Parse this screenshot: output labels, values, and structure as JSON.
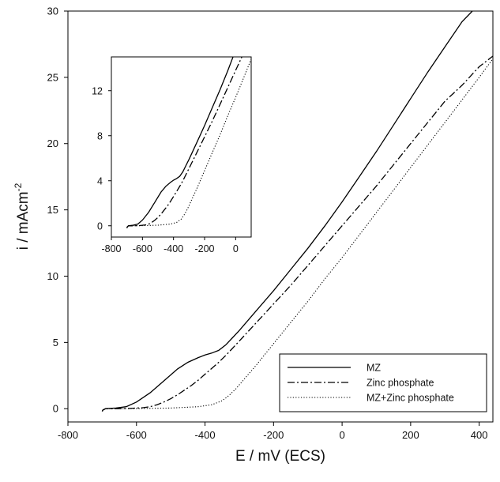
{
  "chart_data": {
    "type": "line",
    "xlabel": "E / mV (ECS)",
    "ylabel": "i / mAcm",
    "ylabel_superscript": "-2",
    "xlim": [
      -800,
      440
    ],
    "ylim": [
      -1,
      30
    ],
    "xticks": [
      -800,
      -600,
      -400,
      -200,
      0,
      200,
      400
    ],
    "yticks": [
      0,
      5,
      10,
      15,
      20,
      25,
      30
    ],
    "grid": false,
    "legend_position": "bottom-right",
    "series": [
      {
        "name": "MZ",
        "style": "solid",
        "x": [
          -700,
          -698,
          -690,
          -660,
          -630,
          -600,
          -560,
          -520,
          -480,
          -450,
          -420,
          -400,
          -380,
          -360,
          -340,
          -320,
          -300,
          -250,
          -200,
          -150,
          -100,
          -50,
          0,
          50,
          100,
          150,
          200,
          250,
          300,
          350,
          380
        ],
        "y": [
          -0.2,
          -0.1,
          0.0,
          0.05,
          0.15,
          0.5,
          1.2,
          2.1,
          3.0,
          3.5,
          3.85,
          4.05,
          4.2,
          4.4,
          4.8,
          5.35,
          5.9,
          7.4,
          8.9,
          10.5,
          12.1,
          13.8,
          15.6,
          17.5,
          19.4,
          21.4,
          23.4,
          25.4,
          27.3,
          29.2,
          30.0
        ]
      },
      {
        "name": "Zinc phosphate",
        "style": "dashdot",
        "x": [
          -700,
          -698,
          -690,
          -660,
          -620,
          -580,
          -560,
          -540,
          -520,
          -500,
          -480,
          -460,
          -440,
          -420,
          -400,
          -380,
          -360,
          -340,
          -300,
          -250,
          -200,
          -150,
          -100,
          -50,
          0,
          50,
          100,
          150,
          200,
          250,
          300,
          350,
          400,
          440
        ],
        "y": [
          -0.2,
          -0.1,
          0.0,
          0.0,
          0.02,
          0.08,
          0.15,
          0.3,
          0.5,
          0.75,
          1.05,
          1.4,
          1.75,
          2.15,
          2.6,
          3.05,
          3.5,
          4.0,
          5.1,
          6.5,
          7.9,
          9.3,
          10.8,
          12.3,
          13.8,
          15.3,
          16.8,
          18.4,
          20.0,
          21.6,
          23.2,
          24.4,
          25.8,
          26.6
        ]
      },
      {
        "name": "MZ+Zinc phosphate",
        "style": "dotted",
        "x": [
          -700,
          -698,
          -690,
          -600,
          -500,
          -420,
          -380,
          -350,
          -330,
          -310,
          -290,
          -270,
          -250,
          -200,
          -150,
          -100,
          -50,
          0,
          50,
          100,
          150,
          200,
          250,
          300,
          350,
          400,
          440
        ],
        "y": [
          -0.2,
          -0.1,
          0.0,
          0.01,
          0.05,
          0.15,
          0.3,
          0.6,
          1.0,
          1.5,
          2.1,
          2.7,
          3.3,
          4.9,
          6.5,
          8.1,
          9.8,
          11.4,
          13.1,
          14.8,
          16.5,
          18.2,
          19.9,
          21.6,
          23.3,
          25.0,
          26.4
        ]
      }
    ],
    "inset": {
      "xlim": [
        -800,
        100
      ],
      "ylim": [
        -1,
        15
      ],
      "xticks": [
        -800,
        -600,
        -400,
        -200,
        0
      ],
      "yticks": [
        0,
        4,
        8,
        12
      ]
    }
  }
}
